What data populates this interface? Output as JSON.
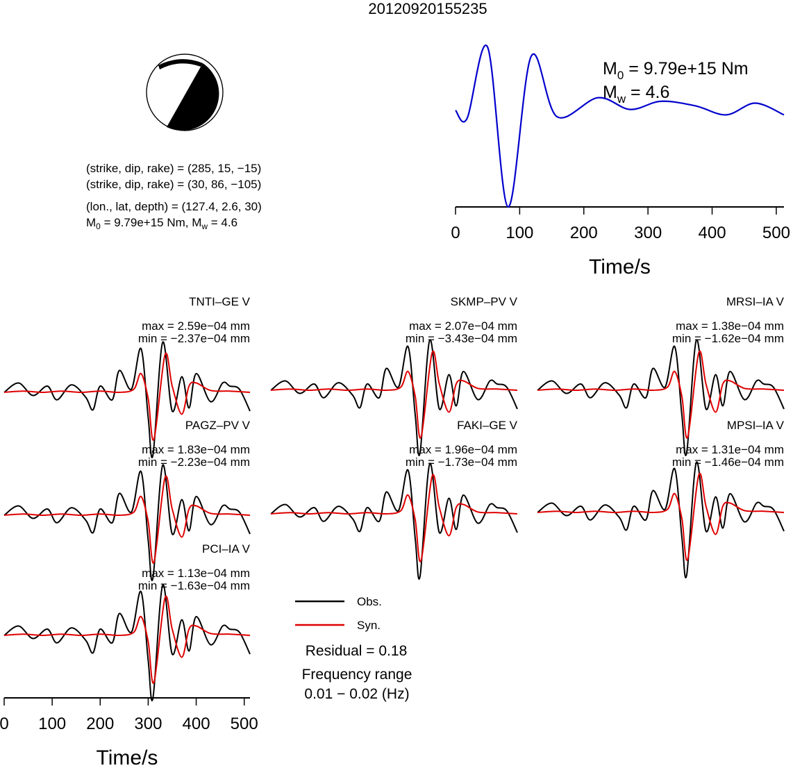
{
  "title": "20120920155235",
  "focal_mechanism": {
    "icon": "beachball-icon",
    "nodal_plane_1": "(strike, dip, rake) = (285, 15, −15)",
    "nodal_plane_2": "(strike, dip, rake) = (30, 86, −105)",
    "location": "(lon., lat, depth) = (127.4, 2.6, 30)",
    "moment_prefix": "M",
    "moment_sub": "0",
    "moment_value": " = 9.79e+15 Nm, M",
    "magnitude_sub": "w",
    "magnitude_value": " = 4.6"
  },
  "stf_annotation": {
    "m0_prefix": "M",
    "m0_sub": "0",
    "m0_value": " = 9.79e+15 Nm",
    "mw_prefix": "M",
    "mw_sub": "w",
    "mw_value": " = 4.6"
  },
  "stations": [
    {
      "name": "TNTI–GE V",
      "max": "max = 2.59e−04 mm",
      "min": "min = −2.37e−04 mm"
    },
    {
      "name": "SKMP–PV V",
      "max": "max = 2.07e−04 mm",
      "min": "min = −3.43e−04 mm"
    },
    {
      "name": "MRSI–IA V",
      "max": "max = 1.38e−04 mm",
      "min": "min = −1.62e−04 mm"
    },
    {
      "name": "PAGZ–PV V",
      "max": "max = 1.83e−04 mm",
      "min": "min = −2.23e−04 mm"
    },
    {
      "name": "FAKI–GE V",
      "max": "max = 1.96e−04 mm",
      "min": "min = −1.73e−04 mm"
    },
    {
      "name": "MPSI–IA V",
      "max": "max = 1.31e−04 mm",
      "min": "min = −1.46e−04 mm"
    },
    {
      "name": "PCI–IA V",
      "max": "max = 1.13e−04 mm",
      "min": "min = −1.63e−04 mm"
    }
  ],
  "legend": {
    "obs": "Obs.",
    "syn": "Syn."
  },
  "residual": "Residual = 0.18",
  "frequency_label": "Frequency range",
  "frequency_value": "0.01 − 0.02 (Hz)",
  "colors": {
    "obs": "#000000",
    "syn": "#e00000",
    "stf": "#0000cc"
  },
  "chart_data": [
    {
      "type": "line",
      "title": "",
      "xlabel": "Time/s",
      "ylabel": "",
      "xlim": [
        0,
        512
      ],
      "xticks": [
        0,
        100,
        200,
        300,
        400,
        500
      ],
      "series": [
        {
          "color": "#0000cc",
          "x": [
            0,
            18,
            50,
            82,
            118,
            158,
            222,
            272,
            320,
            374,
            422,
            467,
            512
          ],
          "values": [
            0.17,
            0.08,
            0.87,
            -0.9,
            0.77,
            0.1,
            0.31,
            0.18,
            0.27,
            0.22,
            0.12,
            0.25,
            0.12
          ]
        }
      ]
    },
    {
      "type": "line",
      "title": "",
      "xlabel": "Time/s",
      "ylabel": "",
      "xlim": [
        0,
        512
      ],
      "xticks": [
        0,
        100,
        200,
        300,
        400,
        500
      ],
      "series": [
        {
          "name": "Obs.",
          "color": "#000000",
          "x": [
            0,
            30,
            60,
            90,
            110,
            140,
            170,
            185,
            200,
            225,
            240,
            265,
            285,
            300,
            310,
            330,
            350,
            370,
            385,
            400,
            430,
            455,
            470,
            490,
            512
          ],
          "values": [
            0,
            0.15,
            -0.05,
            0.1,
            -0.12,
            0.12,
            -0.08,
            -0.28,
            0.1,
            -0.12,
            0.35,
            0.05,
            0.7,
            -0.4,
            -1.0,
            0.8,
            -0.3,
            0.25,
            -0.25,
            0.3,
            -0.15,
            0.15,
            0.1,
            0.05,
            -0.3
          ]
        },
        {
          "name": "Syn.",
          "color": "#e00000",
          "x": [
            0,
            40,
            80,
            120,
            160,
            200,
            240,
            270,
            285,
            300,
            312,
            335,
            350,
            370,
            385,
            400,
            430,
            470,
            512
          ],
          "values": [
            0,
            0.02,
            0,
            0.02,
            0,
            0.02,
            0,
            0.05,
            0.3,
            -0.1,
            -0.75,
            0.6,
            0.1,
            -0.35,
            0.1,
            0.15,
            0.03,
            0.02,
            0
          ]
        }
      ]
    }
  ]
}
